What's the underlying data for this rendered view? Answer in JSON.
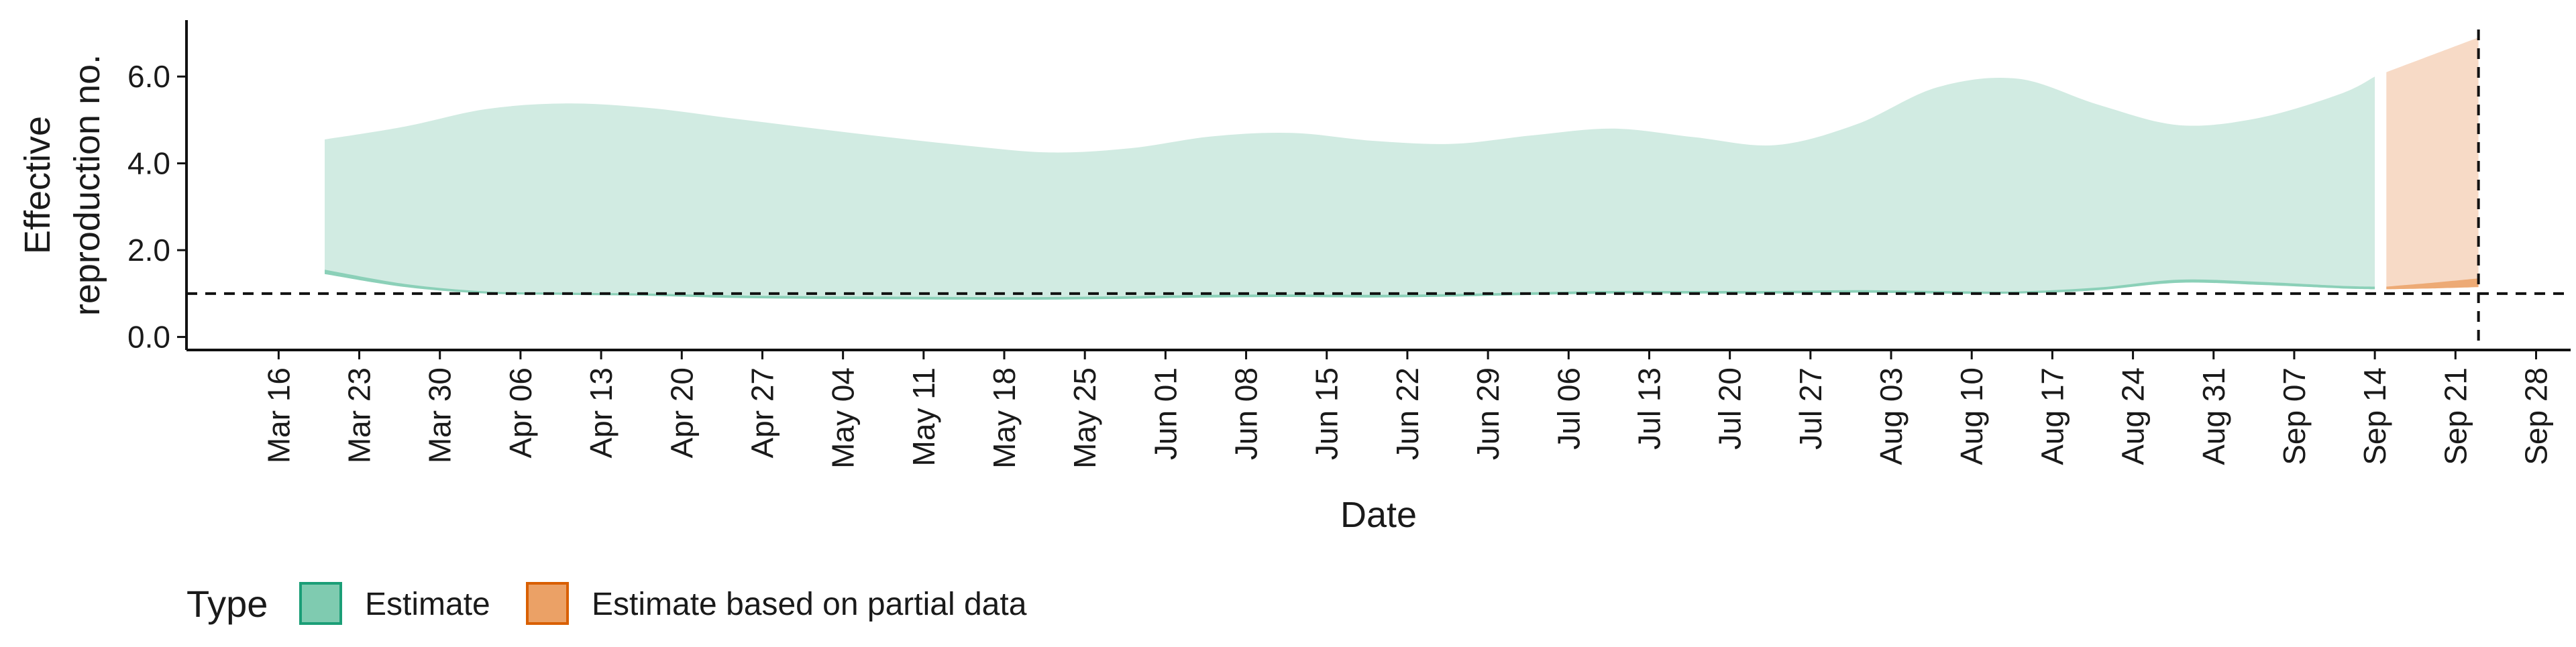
{
  "chart_data": {
    "type": "area",
    "xlabel": "Date",
    "ylabel_lines": [
      "Effective",
      "reproduction no."
    ],
    "ylim": [
      -0.3,
      7.3
    ],
    "yticks": [
      0.0,
      2.0,
      4.0,
      6.0
    ],
    "ytick_labels": [
      "0.0",
      "2.0",
      "4.0",
      "6.0"
    ],
    "x_range": [
      "2020-03-08",
      "2020-10-01"
    ],
    "xticks": [
      "2020-03-16",
      "2020-03-23",
      "2020-03-30",
      "2020-04-06",
      "2020-04-13",
      "2020-04-20",
      "2020-04-27",
      "2020-05-04",
      "2020-05-11",
      "2020-05-18",
      "2020-05-25",
      "2020-06-01",
      "2020-06-08",
      "2020-06-15",
      "2020-06-22",
      "2020-06-29",
      "2020-07-06",
      "2020-07-13",
      "2020-07-20",
      "2020-07-27",
      "2020-08-03",
      "2020-08-10",
      "2020-08-17",
      "2020-08-24",
      "2020-08-31",
      "2020-09-07",
      "2020-09-14",
      "2020-09-21",
      "2020-09-28"
    ],
    "xtick_labels": [
      "Mar 16",
      "Mar 23",
      "Mar 30",
      "Apr 06",
      "Apr 13",
      "Apr 20",
      "Apr 27",
      "May 04",
      "May 11",
      "May 18",
      "May 25",
      "Jun 01",
      "Jun 08",
      "Jun 15",
      "Jun 22",
      "Jun 29",
      "Jul 06",
      "Jul 13",
      "Jul 20",
      "Jul 27",
      "Aug 03",
      "Aug 10",
      "Aug 17",
      "Aug 24",
      "Aug 31",
      "Sep 07",
      "Sep 14",
      "Sep 21",
      "Sep 28"
    ],
    "reference_lines": {
      "horizontal_y": 1.0,
      "vertical_date": "2020-09-23"
    },
    "legend": {
      "title": "Type",
      "position": "bottom-left",
      "entries": [
        {
          "label": "Estimate",
          "fill": "#7fcbb0",
          "stroke": "#1b9e77"
        },
        {
          "label": "Estimate based on partial data",
          "fill": "#eba166",
          "stroke": "#d95f02"
        }
      ]
    },
    "grid": false,
    "series": [
      {
        "type_key": "Estimate",
        "outer_fill": "#d1ebe2",
        "inner_fill": "#7fcbb0",
        "points": [
          {
            "date": "2020-03-20",
            "upper": 4.55,
            "lower": 1.45,
            "inner_upper": 1.55
          },
          {
            "date": "2020-03-27",
            "upper": 4.85,
            "lower": 1.15,
            "inner_upper": 1.22
          },
          {
            "date": "2020-04-03",
            "upper": 5.25,
            "lower": 1.0,
            "inner_upper": 1.05
          },
          {
            "date": "2020-04-10",
            "upper": 5.38,
            "lower": 0.97,
            "inner_upper": 1.02
          },
          {
            "date": "2020-04-17",
            "upper": 5.28,
            "lower": 0.95,
            "inner_upper": 1.0
          },
          {
            "date": "2020-04-24",
            "upper": 5.05,
            "lower": 0.9,
            "inner_upper": 0.96
          },
          {
            "date": "2020-05-01",
            "upper": 4.82,
            "lower": 0.88,
            "inner_upper": 0.94
          },
          {
            "date": "2020-05-08",
            "upper": 4.6,
            "lower": 0.87,
            "inner_upper": 0.93
          },
          {
            "date": "2020-05-15",
            "upper": 4.4,
            "lower": 0.86,
            "inner_upper": 0.92
          },
          {
            "date": "2020-05-22",
            "upper": 4.25,
            "lower": 0.86,
            "inner_upper": 0.92
          },
          {
            "date": "2020-05-29",
            "upper": 4.35,
            "lower": 0.88,
            "inner_upper": 0.94
          },
          {
            "date": "2020-06-05",
            "upper": 4.62,
            "lower": 0.91,
            "inner_upper": 0.97
          },
          {
            "date": "2020-06-12",
            "upper": 4.7,
            "lower": 0.92,
            "inner_upper": 0.98
          },
          {
            "date": "2020-06-19",
            "upper": 4.52,
            "lower": 0.91,
            "inner_upper": 0.97
          },
          {
            "date": "2020-06-26",
            "upper": 4.45,
            "lower": 0.93,
            "inner_upper": 0.99
          },
          {
            "date": "2020-07-03",
            "upper": 4.65,
            "lower": 0.97,
            "inner_upper": 1.03
          },
          {
            "date": "2020-07-10",
            "upper": 4.8,
            "lower": 1.0,
            "inner_upper": 1.06
          },
          {
            "date": "2020-07-17",
            "upper": 4.6,
            "lower": 1.0,
            "inner_upper": 1.06
          },
          {
            "date": "2020-07-24",
            "upper": 4.42,
            "lower": 1.0,
            "inner_upper": 1.06
          },
          {
            "date": "2020-07-31",
            "upper": 4.9,
            "lower": 1.02,
            "inner_upper": 1.08
          },
          {
            "date": "2020-08-07",
            "upper": 5.75,
            "lower": 1.0,
            "inner_upper": 1.06
          },
          {
            "date": "2020-08-14",
            "upper": 5.95,
            "lower": 1.0,
            "inner_upper": 1.05
          },
          {
            "date": "2020-08-21",
            "upper": 5.35,
            "lower": 1.08,
            "inner_upper": 1.14
          },
          {
            "date": "2020-08-28",
            "upper": 4.88,
            "lower": 1.25,
            "inner_upper": 1.32
          },
          {
            "date": "2020-09-04",
            "upper": 5.05,
            "lower": 1.2,
            "inner_upper": 1.27
          },
          {
            "date": "2020-09-11",
            "upper": 5.6,
            "lower": 1.12,
            "inner_upper": 1.18
          },
          {
            "date": "2020-09-14",
            "upper": 6.0,
            "lower": 1.1,
            "inner_upper": 1.16
          }
        ]
      },
      {
        "type_key": "Estimate based on partial data",
        "outer_fill": "#f7dac6",
        "inner_fill": "#eba166",
        "points": [
          {
            "date": "2020-09-15",
            "upper": 6.1,
            "lower": 1.1,
            "inner_upper": 1.16
          },
          {
            "date": "2020-09-19",
            "upper": 6.5,
            "lower": 1.12,
            "inner_upper": 1.25
          },
          {
            "date": "2020-09-23",
            "upper": 6.9,
            "lower": 1.15,
            "inner_upper": 1.35
          }
        ]
      }
    ]
  }
}
